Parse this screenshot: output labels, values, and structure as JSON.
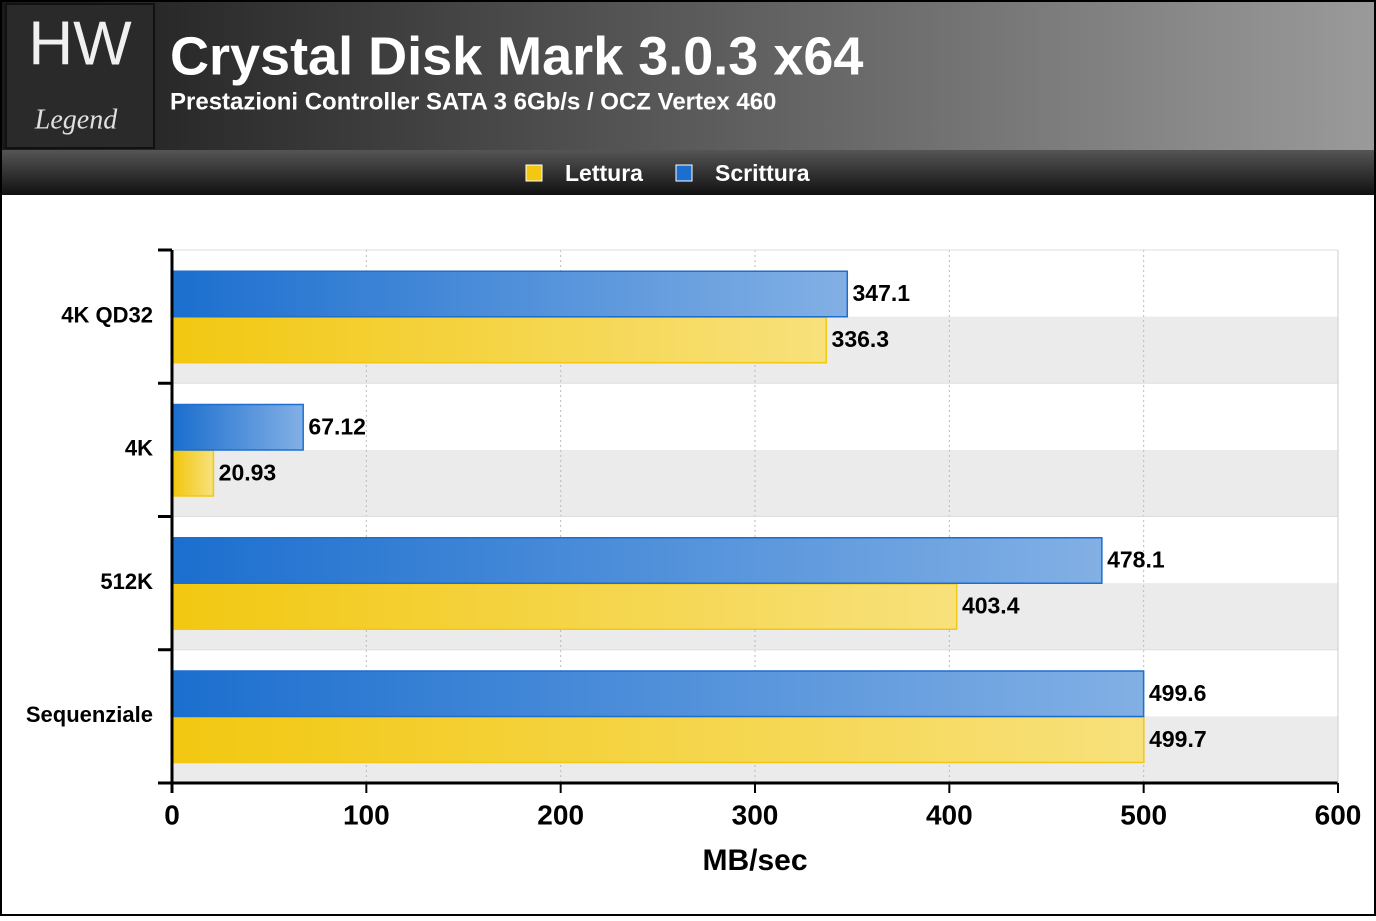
{
  "logo": {
    "mark": "HW",
    "name": "Legend"
  },
  "chart_data": {
    "type": "hbar",
    "title": "Crystal Disk Mark 3.0.3 x64",
    "subtitle": "Prestazioni Controller SATA 3 6Gb/s / OCZ Vertex 460",
    "x_label": "MB/sec",
    "categories": [
      "4K QD32",
      "4K",
      "512K",
      "Sequenziale"
    ],
    "series": [
      {
        "name": "Lettura",
        "color": "#f2c811",
        "values": [
          336.3,
          20.93,
          403.4,
          499.7
        ]
      },
      {
        "name": "Scrittura",
        "color": "#1c6fcf",
        "values": [
          347.1,
          67.12,
          478.1,
          499.6
        ]
      }
    ],
    "xlim": [
      0,
      600
    ],
    "xticks": [
      0,
      100,
      200,
      300,
      400,
      500,
      600
    ],
    "grid": true,
    "legend": "top"
  }
}
